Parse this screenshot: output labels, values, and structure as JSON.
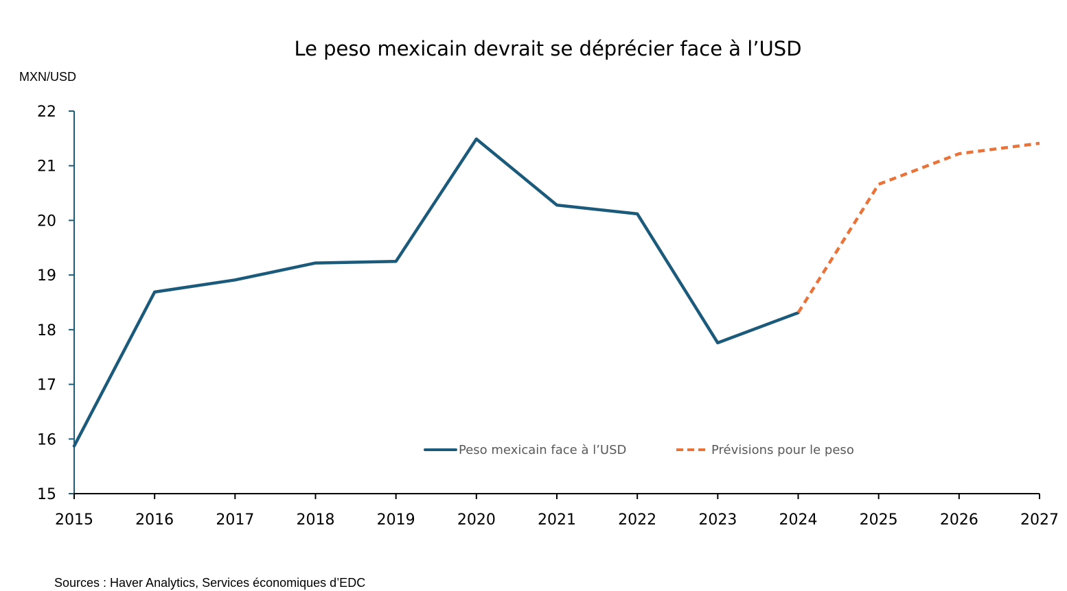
{
  "chart_data": {
    "type": "line",
    "title": "Le peso mexicain devrait se déprécier face à l’USD",
    "ylabel": "MXN/USD",
    "xlabel": "",
    "x": [
      2015,
      2016,
      2017,
      2018,
      2019,
      2020,
      2021,
      2022,
      2023,
      2024,
      2025,
      2026,
      2027
    ],
    "xlim": [
      2015,
      2027
    ],
    "ylim": [
      15,
      22
    ],
    "yticks": [
      15,
      16,
      17,
      18,
      19,
      20,
      21,
      22
    ],
    "grid": false,
    "legend_position": "bottom-center-inside",
    "series": [
      {
        "name": "Peso mexicain face à l’USD",
        "style": "solid",
        "color": "#1b5a7a",
        "x": [
          2015,
          2016,
          2017,
          2018,
          2019,
          2020,
          2021,
          2022,
          2023,
          2024
        ],
        "values": [
          15.87,
          18.69,
          18.91,
          19.22,
          19.25,
          21.49,
          20.28,
          20.12,
          17.76,
          18.31
        ]
      },
      {
        "name": "Prévisions pour le peso",
        "style": "dashed",
        "color": "#e8743b",
        "x": [
          2024,
          2025,
          2026,
          2027
        ],
        "values": [
          18.31,
          20.66,
          21.22,
          21.41
        ]
      }
    ],
    "source": "Sources : Haver Analytics, Services économiques d’EDC"
  }
}
